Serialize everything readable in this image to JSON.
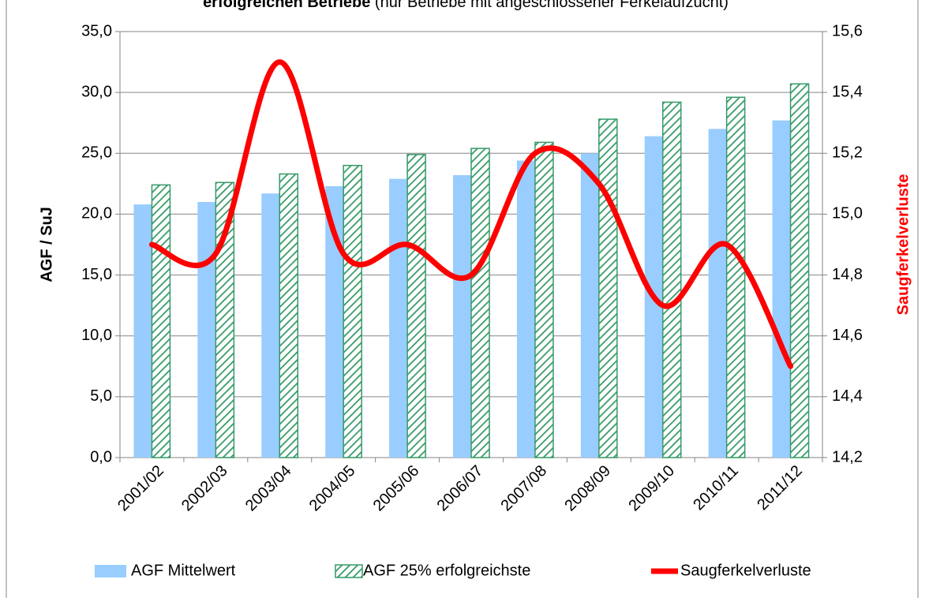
{
  "chart_data": {
    "type": "bar",
    "title": "erfolgreichen Betriebe",
    "subtitle": "(nur Betriebe mit angeschlossener Ferkelaufzucht)",
    "ylabel": "AGF / SuJ",
    "y2label": "Saugferkelverluste",
    "categories": [
      "2001/02",
      "2002/03",
      "2003/04",
      "2004/05",
      "2005/06",
      "2006/07",
      "2007/08",
      "2008/09",
      "2009/10",
      "2010/11",
      "2011/12"
    ],
    "series": [
      {
        "name": "AGF Mittelwert",
        "color": "#99ccff",
        "type": "bar",
        "values": [
          20.8,
          21.0,
          21.7,
          22.3,
          22.9,
          23.2,
          24.4,
          25.0,
          26.4,
          27.0,
          27.7
        ]
      },
      {
        "name": "AGF 25% erfolgreichste",
        "color": "#339966",
        "type": "hatch",
        "values": [
          22.4,
          22.6,
          23.3,
          24.0,
          24.9,
          25.4,
          25.9,
          27.8,
          29.2,
          29.6,
          30.7
        ]
      },
      {
        "name": "Saugferkelverluste",
        "color": "#ff0000",
        "type": "line",
        "axis": "y2",
        "values": [
          14.9,
          14.87,
          15.5,
          14.87,
          14.9,
          14.8,
          15.2,
          15.1,
          14.7,
          14.9,
          14.5
        ]
      }
    ],
    "ylim": [
      0,
      35
    ],
    "yticks": [
      {
        "value": 0,
        "label": "0,0"
      },
      {
        "value": 5,
        "label": "5,0"
      },
      {
        "value": 10,
        "label": "10,0"
      },
      {
        "value": 15,
        "label": "15,0"
      },
      {
        "value": 20,
        "label": "20,0"
      },
      {
        "value": 25,
        "label": "25,0"
      },
      {
        "value": 30,
        "label": "30,0"
      },
      {
        "value": 35,
        "label": "35,0"
      }
    ],
    "y2lim": [
      14.2,
      15.6
    ],
    "y2ticks": [
      {
        "value": 14.2,
        "label": "14,2"
      },
      {
        "value": 14.4,
        "label": "14,4"
      },
      {
        "value": 14.6,
        "label": "14,6"
      },
      {
        "value": 14.8,
        "label": "14,8"
      },
      {
        "value": 15.0,
        "label": "15,0"
      },
      {
        "value": 15.2,
        "label": "15,2"
      },
      {
        "value": 15.4,
        "label": "15,4"
      },
      {
        "value": 15.6,
        "label": "15,6"
      }
    ],
    "grid": true,
    "legend": "bottom"
  }
}
